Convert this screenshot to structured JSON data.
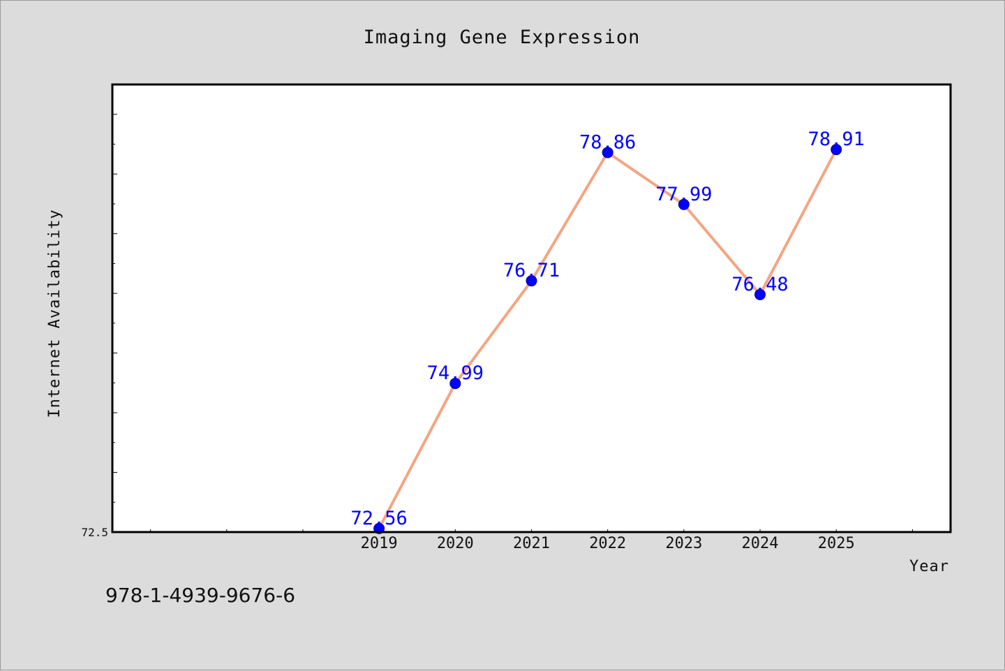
{
  "footer": {
    "isbn": "978-1-4939-9676-6"
  },
  "chart_data": {
    "type": "line",
    "title": "Imaging Gene Expression",
    "xlabel": "Year",
    "ylabel": "Internet Availability",
    "x": [
      "2019",
      "2020",
      "2021",
      "2022",
      "2023",
      "2024",
      "2025"
    ],
    "values": [
      72.56,
      74.99,
      76.71,
      78.86,
      77.99,
      76.48,
      78.91
    ],
    "data_labels": [
      "72.56",
      "74.99",
      "76.71",
      "78.86",
      "77.99",
      "76.48",
      "78.91"
    ],
    "y_tick_labels": [
      "72.5"
    ],
    "xlim": [
      2015.5,
      2026.5
    ],
    "ylim": [
      72.5,
      80
    ],
    "grid": false,
    "line_color": "#f4a582",
    "marker_color": "#0000ff",
    "label_color": "#0000ff",
    "plot_background": "#ffffff",
    "page_background": "#dcdcdc"
  }
}
